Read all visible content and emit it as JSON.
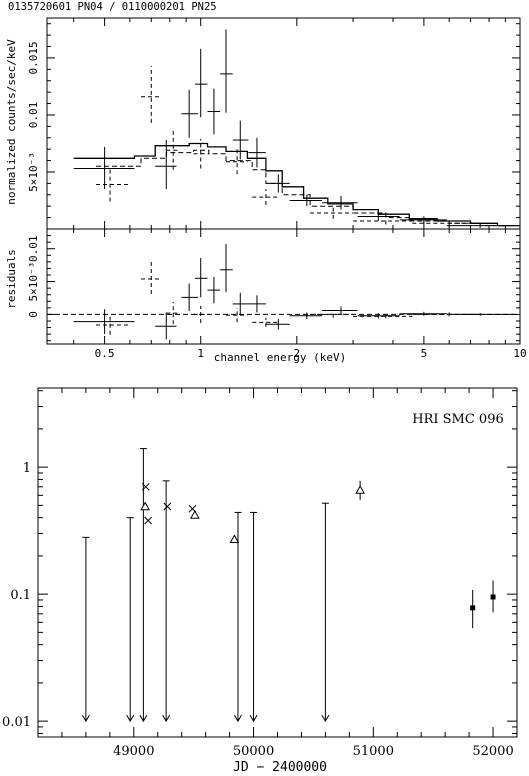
{
  "header": {
    "obs_label": "0135720601 PN04 / 0110000201 PN25"
  },
  "chart_data": [
    {
      "type": "scatter",
      "panel": "spectrum",
      "xscale": "log",
      "xlim": [
        0.33,
        10
      ],
      "ylim": [
        0,
        0.0185
      ],
      "ylabel": "normalized counts/sec/keV",
      "yticks": [
        {
          "value": 0.005,
          "label": "5×10⁻³"
        },
        {
          "value": 0.01,
          "label": "0.01"
        },
        {
          "value": 0.015,
          "label": "0.015"
        }
      ],
      "series": [
        {
          "style": "solid",
          "points": [
            {
              "x": 0.5,
              "xlo": 0.4,
              "xhi": 0.62,
              "y": 0.0053,
              "ylo": 0.0035,
              "yhi": 0.0072
            },
            {
              "x": 0.78,
              "xlo": 0.72,
              "xhi": 0.84,
              "y": 0.0055,
              "ylo": 0.0035,
              "yhi": 0.0078
            },
            {
              "x": 0.92,
              "xlo": 0.87,
              "xhi": 0.98,
              "y": 0.0101,
              "ylo": 0.008,
              "yhi": 0.0122
            },
            {
              "x": 1.0,
              "xlo": 0.96,
              "xhi": 1.05,
              "y": 0.0127,
              "ylo": 0.0098,
              "yhi": 0.0158
            },
            {
              "x": 1.1,
              "xlo": 1.05,
              "xhi": 1.15,
              "y": 0.0103,
              "ylo": 0.0083,
              "yhi": 0.0123
            },
            {
              "x": 1.2,
              "xlo": 1.15,
              "xhi": 1.26,
              "y": 0.0136,
              "ylo": 0.0102,
              "yhi": 0.0175
            },
            {
              "x": 1.33,
              "xlo": 1.26,
              "xhi": 1.41,
              "y": 0.0078,
              "ylo": 0.0061,
              "yhi": 0.0095
            },
            {
              "x": 1.5,
              "xlo": 1.41,
              "xhi": 1.6,
              "y": 0.0067,
              "ylo": 0.0054,
              "yhi": 0.008
            },
            {
              "x": 1.75,
              "xlo": 1.6,
              "xhi": 1.9,
              "y": 0.004,
              "ylo": 0.0032,
              "yhi": 0.0048
            },
            {
              "x": 2.15,
              "xlo": 1.9,
              "xhi": 2.4,
              "y": 0.0025,
              "ylo": 0.002,
              "yhi": 0.003
            },
            {
              "x": 2.75,
              "xlo": 2.4,
              "xhi": 3.1,
              "y": 0.0023,
              "ylo": 0.0017,
              "yhi": 0.0029
            },
            {
              "x": 3.6,
              "xlo": 3.1,
              "xhi": 4.2,
              "y": 0.0011,
              "ylo": 0.0007,
              "yhi": 0.0015
            },
            {
              "x": 5.0,
              "xlo": 4.2,
              "xhi": 5.9,
              "y": 0.0008,
              "ylo": 0.0005,
              "yhi": 0.0011
            },
            {
              "x": 7.5,
              "xlo": 5.9,
              "xhi": 9.5,
              "y": 0.0003,
              "ylo": 0.0001,
              "yhi": 0.0005
            }
          ]
        },
        {
          "style": "dashed",
          "points": [
            {
              "x": 0.52,
              "xlo": 0.47,
              "xhi": 0.6,
              "y": 0.0039,
              "ylo": 0.0024,
              "yhi": 0.0054
            },
            {
              "x": 0.7,
              "xlo": 0.65,
              "xhi": 0.75,
              "y": 0.0116,
              "ylo": 0.0093,
              "yhi": 0.0143
            },
            {
              "x": 0.82,
              "xlo": 0.78,
              "xhi": 0.86,
              "y": 0.0069,
              "ylo": 0.0052,
              "yhi": 0.0086
            },
            {
              "x": 1.0,
              "xlo": 0.95,
              "xhi": 1.06,
              "y": 0.0066,
              "ylo": 0.0053,
              "yhi": 0.0079
            },
            {
              "x": 1.3,
              "xlo": 1.2,
              "xhi": 1.4,
              "y": 0.0059,
              "ylo": 0.0048,
              "yhi": 0.007
            },
            {
              "x": 1.6,
              "xlo": 1.45,
              "xhi": 1.75,
              "y": 0.0028,
              "ylo": 0.0021,
              "yhi": 0.0035
            },
            {
              "x": 2.6,
              "xlo": 2.2,
              "xhi": 3.0,
              "y": 0.0014,
              "ylo": 0.0009,
              "yhi": 0.0019
            },
            {
              "x": 3.8,
              "xlo": 3.0,
              "xhi": 4.6,
              "y": 0.0007,
              "ylo": 0.0004,
              "yhi": 0.001
            },
            {
              "x": 6.0,
              "xlo": 4.6,
              "xhi": 7.5,
              "y": 0.0005,
              "ylo": 0.0002,
              "yhi": 0.0008
            }
          ]
        }
      ],
      "models": [
        {
          "style": "solid",
          "steps": [
            [
              0.4,
              0.0062
            ],
            [
              0.62,
              0.0064
            ],
            [
              0.72,
              0.0073
            ],
            [
              0.92,
              0.0075
            ],
            [
              1.05,
              0.0072
            ],
            [
              1.2,
              0.0068
            ],
            [
              1.4,
              0.0062
            ],
            [
              1.6,
              0.0051
            ],
            [
              1.8,
              0.0037
            ],
            [
              2.1,
              0.0027
            ],
            [
              2.5,
              0.0022
            ],
            [
              3.0,
              0.0017
            ],
            [
              3.6,
              0.0013
            ],
            [
              4.5,
              0.0009
            ],
            [
              5.5,
              0.0007
            ],
            [
              7.0,
              0.0005
            ],
            [
              8.5,
              0.0003
            ],
            [
              10,
              0.0003
            ]
          ]
        },
        {
          "style": "dashed",
          "steps": [
            [
              0.47,
              0.0055
            ],
            [
              0.65,
              0.0062
            ],
            [
              0.78,
              0.0067
            ],
            [
              0.95,
              0.0069
            ],
            [
              1.06,
              0.0066
            ],
            [
              1.2,
              0.006
            ],
            [
              1.45,
              0.0052
            ],
            [
              1.6,
              0.004
            ],
            [
              1.8,
              0.003
            ],
            [
              2.2,
              0.002
            ],
            [
              3.0,
              0.0014
            ],
            [
              3.8,
              0.001
            ],
            [
              4.6,
              0.0007
            ],
            [
              6.0,
              0.0005
            ],
            [
              7.5,
              0.0003
            ],
            [
              10,
              0.0003
            ]
          ]
        }
      ]
    },
    {
      "type": "scatter",
      "panel": "residuals",
      "xscale": "log",
      "xlim": [
        0.33,
        10
      ],
      "ylim": [
        -0.0045,
        0.013
      ],
      "xlabel": "channel energy (keV)",
      "ylabel": "residuals",
      "xticks": [
        {
          "value": 0.5,
          "label": "0.5"
        },
        {
          "value": 1,
          "label": "1"
        },
        {
          "value": 2,
          "label": "2"
        },
        {
          "value": 5,
          "label": "5"
        },
        {
          "value": 10,
          "label": "10"
        }
      ],
      "yticks": [
        {
          "value": 0,
          "label": "0"
        },
        {
          "value": 0.005,
          "label": "5×10⁻³"
        },
        {
          "value": 0.01,
          "label": "0.01"
        }
      ],
      "series": [
        {
          "style": "solid",
          "points": [
            {
              "x": 0.5,
              "xlo": 0.4,
              "xhi": 0.62,
              "y": -0.0011,
              "ylo": -0.003,
              "yhi": 0.0008
            },
            {
              "x": 0.78,
              "xlo": 0.72,
              "xhi": 0.84,
              "y": -0.0018,
              "ylo": -0.0038,
              "yhi": 0.0003
            },
            {
              "x": 0.92,
              "xlo": 0.87,
              "xhi": 0.98,
              "y": 0.0026,
              "ylo": 0.0005,
              "yhi": 0.0047
            },
            {
              "x": 1.0,
              "xlo": 0.96,
              "xhi": 1.05,
              "y": 0.0055,
              "ylo": 0.0026,
              "yhi": 0.0086
            },
            {
              "x": 1.1,
              "xlo": 1.05,
              "xhi": 1.15,
              "y": 0.0037,
              "ylo": 0.0017,
              "yhi": 0.0057
            },
            {
              "x": 1.2,
              "xlo": 1.15,
              "xhi": 1.26,
              "y": 0.0068,
              "ylo": 0.0034,
              "yhi": 0.0107
            },
            {
              "x": 1.33,
              "xlo": 1.26,
              "xhi": 1.41,
              "y": 0.0016,
              "ylo": -0.0001,
              "yhi": 0.0033
            },
            {
              "x": 1.5,
              "xlo": 1.41,
              "xhi": 1.6,
              "y": 0.0016,
              "ylo": 0.0003,
              "yhi": 0.0029
            },
            {
              "x": 1.75,
              "xlo": 1.6,
              "xhi": 1.9,
              "y": -0.0015,
              "ylo": -0.0023,
              "yhi": -0.0007
            },
            {
              "x": 2.15,
              "xlo": 1.9,
              "xhi": 2.4,
              "y": -0.0002,
              "ylo": -0.0007,
              "yhi": 0.0003
            },
            {
              "x": 2.75,
              "xlo": 2.4,
              "xhi": 3.1,
              "y": 0.0006,
              "ylo": 0.0,
              "yhi": 0.0012
            },
            {
              "x": 3.6,
              "xlo": 3.1,
              "xhi": 4.2,
              "y": -0.0002,
              "ylo": -0.0006,
              "yhi": 0.0002
            },
            {
              "x": 5.0,
              "xlo": 4.2,
              "xhi": 5.9,
              "y": 0.0001,
              "ylo": -0.0002,
              "yhi": 0.0004
            },
            {
              "x": 7.5,
              "xlo": 5.9,
              "xhi": 9.5,
              "y": 0.0,
              "ylo": -0.0002,
              "yhi": 0.0002
            }
          ]
        },
        {
          "style": "dashed",
          "points": [
            {
              "x": 0.52,
              "xlo": 0.47,
              "xhi": 0.6,
              "y": -0.0016,
              "ylo": -0.0031,
              "yhi": -0.0001
            },
            {
              "x": 0.7,
              "xlo": 0.65,
              "xhi": 0.75,
              "y": 0.0054,
              "ylo": 0.0031,
              "yhi": 0.0081
            },
            {
              "x": 0.82,
              "xlo": 0.78,
              "xhi": 0.86,
              "y": 0.0002,
              "ylo": -0.0015,
              "yhi": 0.0019
            },
            {
              "x": 1.0,
              "xlo": 0.95,
              "xhi": 1.06,
              "y": 0.0,
              "ylo": -0.0013,
              "yhi": 0.0013
            },
            {
              "x": 1.3,
              "xlo": 1.2,
              "xhi": 1.4,
              "y": -0.0001,
              "ylo": -0.0012,
              "yhi": 0.001
            },
            {
              "x": 1.6,
              "xlo": 1.45,
              "xhi": 1.75,
              "y": -0.0012,
              "ylo": -0.0019,
              "yhi": -0.0005
            },
            {
              "x": 2.6,
              "xlo": 2.2,
              "xhi": 3.0,
              "y": 0.0,
              "ylo": -0.0005,
              "yhi": 0.0005
            },
            {
              "x": 3.8,
              "xlo": 3.0,
              "xhi": 4.6,
              "y": -0.0003,
              "ylo": -0.0006,
              "yhi": 0.0
            },
            {
              "x": 6.0,
              "xlo": 4.6,
              "xhi": 7.5,
              "y": 0.0,
              "ylo": -0.0003,
              "yhi": 0.0003
            }
          ]
        }
      ]
    },
    {
      "type": "scatter",
      "panel": "lightcurve",
      "title": "HRI SMC 096",
      "xlabel": "JD − 2400000",
      "yscale": "log",
      "xlim": [
        48200,
        52200
      ],
      "ylim": [
        0.0075,
        4.2
      ],
      "xticks": [
        {
          "value": 49000,
          "label": "49000"
        },
        {
          "value": 50000,
          "label": "50000"
        },
        {
          "value": 51000,
          "label": "51000"
        },
        {
          "value": 52000,
          "label": "52000"
        }
      ],
      "yticks": [
        {
          "value": 0.01,
          "label": "0.01"
        },
        {
          "value": 0.1,
          "label": "0.1"
        },
        {
          "value": 1,
          "label": "1"
        }
      ],
      "upper_limits": [
        {
          "x": 48600,
          "y": 0.28
        },
        {
          "x": 48970,
          "y": 0.4
        },
        {
          "x": 49080,
          "y": 1.4
        },
        {
          "x": 49270,
          "y": 0.78
        },
        {
          "x": 49870,
          "y": 0.44
        },
        {
          "x": 50000,
          "y": 0.44
        },
        {
          "x": 50600,
          "y": 0.52
        }
      ],
      "crosses": [
        {
          "x": 49100,
          "y": 0.7
        },
        {
          "x": 49120,
          "y": 0.38
        },
        {
          "x": 49280,
          "y": 0.49
        },
        {
          "x": 49490,
          "y": 0.47
        }
      ],
      "triangles": [
        {
          "x": 49095,
          "y": 0.49
        },
        {
          "x": 49510,
          "y": 0.42
        },
        {
          "x": 49840,
          "y": 0.27
        },
        {
          "x": 50890,
          "y": 0.66,
          "ylo": 0.55,
          "yhi": 0.78
        }
      ],
      "filled": [
        {
          "x": 51830,
          "y": 0.078,
          "ylo": 0.054,
          "yhi": 0.108
        },
        {
          "x": 52000,
          "y": 0.095,
          "ylo": 0.072,
          "yhi": 0.128
        }
      ]
    }
  ]
}
